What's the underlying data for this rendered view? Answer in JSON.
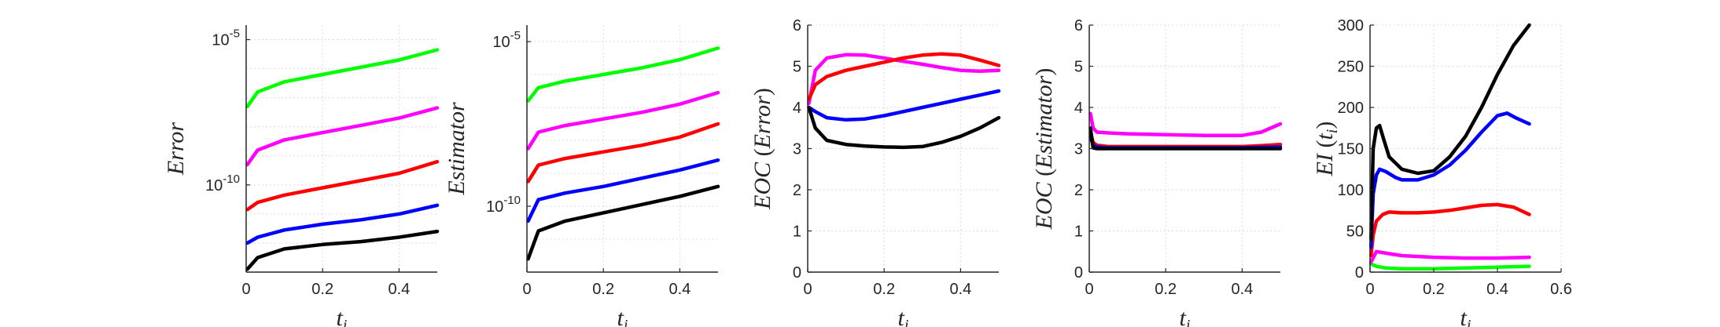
{
  "chart_data": [
    {
      "type": "line",
      "yscale": "log",
      "ylabel": "Error",
      "xlabel": "t_i",
      "xlim": [
        0,
        0.5
      ],
      "ylim_exponent": [
        -13,
        -4.5
      ],
      "x_ticks": [
        "0",
        "0.2",
        "0.4"
      ],
      "y_ticks": [
        "10^{-10}",
        "10^{-5}"
      ],
      "grid": true,
      "series": [
        {
          "color": "#00ff00",
          "x": [
            0.003,
            0.03,
            0.1,
            0.2,
            0.3,
            0.4,
            0.5
          ],
          "log10_y": [
            -7.3,
            -6.8,
            -6.45,
            -6.2,
            -5.95,
            -5.7,
            -5.35
          ]
        },
        {
          "color": "#ff00ff",
          "x": [
            0.003,
            0.03,
            0.1,
            0.2,
            0.3,
            0.4,
            0.5
          ],
          "log10_y": [
            -9.3,
            -8.8,
            -8.45,
            -8.2,
            -7.95,
            -7.7,
            -7.35
          ]
        },
        {
          "color": "#ff0000",
          "x": [
            0.003,
            0.03,
            0.1,
            0.2,
            0.3,
            0.4,
            0.5
          ],
          "log10_y": [
            -10.85,
            -10.6,
            -10.35,
            -10.1,
            -9.85,
            -9.6,
            -9.2
          ]
        },
        {
          "color": "#0000ff",
          "x": [
            0.003,
            0.03,
            0.1,
            0.2,
            0.3,
            0.4,
            0.5
          ],
          "log10_y": [
            -12.0,
            -11.8,
            -11.55,
            -11.35,
            -11.2,
            -11.0,
            -10.7
          ]
        },
        {
          "color": "#000000",
          "x": [
            0.003,
            0.03,
            0.1,
            0.2,
            0.3,
            0.4,
            0.5
          ],
          "log10_y": [
            -12.9,
            -12.5,
            -12.2,
            -12.05,
            -11.95,
            -11.8,
            -11.6
          ]
        }
      ]
    },
    {
      "type": "line",
      "yscale": "log",
      "ylabel": "Estimator",
      "xlabel": "t_i",
      "xlim": [
        0,
        0.5
      ],
      "ylim_exponent": [
        -12,
        -4.5
      ],
      "x_ticks": [
        "0",
        "0.2",
        "0.4"
      ],
      "y_ticks": [
        "10^{-10}",
        "10^{-5}"
      ],
      "grid": true,
      "series": [
        {
          "color": "#00ff00",
          "x": [
            0.003,
            0.03,
            0.1,
            0.2,
            0.3,
            0.4,
            0.5
          ],
          "log10_y": [
            -6.8,
            -6.4,
            -6.2,
            -6.0,
            -5.8,
            -5.55,
            -5.2
          ]
        },
        {
          "color": "#ff00ff",
          "x": [
            0.003,
            0.03,
            0.1,
            0.2,
            0.3,
            0.4,
            0.5
          ],
          "log10_y": [
            -8.25,
            -7.75,
            -7.55,
            -7.35,
            -7.15,
            -6.9,
            -6.55
          ]
        },
        {
          "color": "#ff0000",
          "x": [
            0.003,
            0.03,
            0.1,
            0.2,
            0.3,
            0.4,
            0.5
          ],
          "log10_y": [
            -9.25,
            -8.75,
            -8.55,
            -8.35,
            -8.15,
            -7.9,
            -7.5
          ]
        },
        {
          "color": "#0000ff",
          "x": [
            0.003,
            0.03,
            0.1,
            0.2,
            0.3,
            0.4,
            0.5
          ],
          "log10_y": [
            -10.45,
            -9.8,
            -9.6,
            -9.4,
            -9.15,
            -8.9,
            -8.6
          ]
        },
        {
          "color": "#000000",
          "x": [
            0.003,
            0.03,
            0.1,
            0.2,
            0.3,
            0.4,
            0.5
          ],
          "log10_y": [
            -11.6,
            -10.75,
            -10.45,
            -10.2,
            -9.95,
            -9.7,
            -9.4
          ]
        }
      ]
    },
    {
      "type": "line",
      "ylabel": "EOC (Error)",
      "xlabel": "t_i",
      "xlim": [
        0,
        0.5
      ],
      "ylim": [
        0,
        6
      ],
      "x_ticks": [
        "0",
        "0.2",
        "0.4"
      ],
      "y_ticks": [
        "0",
        "1",
        "2",
        "3",
        "4",
        "5",
        "6"
      ],
      "grid": true,
      "series": [
        {
          "color": "#ff00ff",
          "x": [
            0.003,
            0.02,
            0.05,
            0.1,
            0.15,
            0.2,
            0.25,
            0.3,
            0.35,
            0.4,
            0.45,
            0.5
          ],
          "y": [
            4.1,
            4.9,
            5.2,
            5.28,
            5.27,
            5.2,
            5.12,
            5.05,
            4.97,
            4.9,
            4.88,
            4.9
          ]
        },
        {
          "color": "#ff0000",
          "x": [
            0.003,
            0.02,
            0.05,
            0.1,
            0.15,
            0.2,
            0.25,
            0.3,
            0.35,
            0.4,
            0.45,
            0.5
          ],
          "y": [
            4.2,
            4.55,
            4.75,
            4.9,
            5.0,
            5.1,
            5.2,
            5.27,
            5.3,
            5.27,
            5.15,
            5.02
          ]
        },
        {
          "color": "#0000ff",
          "x": [
            0.003,
            0.02,
            0.05,
            0.1,
            0.15,
            0.2,
            0.25,
            0.3,
            0.35,
            0.4,
            0.45,
            0.5
          ],
          "y": [
            4.0,
            3.9,
            3.75,
            3.7,
            3.72,
            3.8,
            3.9,
            4.0,
            4.1,
            4.2,
            4.3,
            4.4
          ]
        },
        {
          "color": "#000000",
          "x": [
            0.003,
            0.02,
            0.05,
            0.1,
            0.15,
            0.2,
            0.25,
            0.3,
            0.35,
            0.4,
            0.45,
            0.5
          ],
          "y": [
            4.0,
            3.5,
            3.2,
            3.1,
            3.06,
            3.04,
            3.03,
            3.05,
            3.15,
            3.3,
            3.5,
            3.75
          ]
        }
      ]
    },
    {
      "type": "line",
      "ylabel": "EOC (Estimator)",
      "xlabel": "t_i",
      "xlim": [
        0,
        0.5
      ],
      "ylim": [
        0,
        6
      ],
      "x_ticks": [
        "0",
        "0.2",
        "0.4"
      ],
      "y_ticks": [
        "0",
        "1",
        "2",
        "3",
        "4",
        "5",
        "6"
      ],
      "grid": true,
      "series": [
        {
          "color": "#ff00ff",
          "x": [
            0.003,
            0.01,
            0.02,
            0.05,
            0.1,
            0.2,
            0.3,
            0.4,
            0.45,
            0.5
          ],
          "y": [
            3.85,
            3.5,
            3.4,
            3.38,
            3.36,
            3.34,
            3.32,
            3.32,
            3.4,
            3.6
          ]
        },
        {
          "color": "#ff0000",
          "x": [
            0.003,
            0.01,
            0.02,
            0.05,
            0.1,
            0.2,
            0.3,
            0.4,
            0.45,
            0.5
          ],
          "y": [
            3.4,
            3.15,
            3.08,
            3.05,
            3.05,
            3.05,
            3.05,
            3.05,
            3.07,
            3.1
          ]
        },
        {
          "color": "#0000ff",
          "x": [
            0.003,
            0.01,
            0.02,
            0.05,
            0.1,
            0.2,
            0.3,
            0.4,
            0.45,
            0.5
          ],
          "y": [
            3.3,
            3.08,
            3.04,
            3.02,
            3.02,
            3.02,
            3.02,
            3.02,
            3.03,
            3.04
          ]
        },
        {
          "color": "#000000",
          "x": [
            0.003,
            0.01,
            0.02,
            0.05,
            0.1,
            0.2,
            0.3,
            0.4,
            0.45,
            0.5
          ],
          "y": [
            3.5,
            3.02,
            3.0,
            3.0,
            3.0,
            3.0,
            3.0,
            3.0,
            3.0,
            3.0
          ]
        }
      ]
    },
    {
      "type": "line",
      "ylabel": "EI (t_i)",
      "xlabel": "t_i",
      "xlim": [
        0,
        0.6
      ],
      "ylim": [
        0,
        300
      ],
      "x_ticks": [
        "0",
        "0.2",
        "0.4",
        "0.6"
      ],
      "y_ticks": [
        "0",
        "50",
        "100",
        "150",
        "200",
        "250",
        "300"
      ],
      "grid": true,
      "series": [
        {
          "color": "#00ff00",
          "x": [
            0.003,
            0.02,
            0.05,
            0.1,
            0.2,
            0.3,
            0.4,
            0.5
          ],
          "y": [
            10,
            7,
            5,
            4,
            4,
            5,
            6,
            7
          ]
        },
        {
          "color": "#ff00ff",
          "x": [
            0.003,
            0.02,
            0.05,
            0.1,
            0.2,
            0.3,
            0.4,
            0.5
          ],
          "y": [
            12,
            25,
            23,
            20,
            18,
            17,
            17,
            18
          ]
        },
        {
          "color": "#ff0000",
          "x": [
            0.003,
            0.01,
            0.02,
            0.04,
            0.06,
            0.1,
            0.15,
            0.2,
            0.25,
            0.3,
            0.35,
            0.4,
            0.45,
            0.5
          ],
          "y": [
            20,
            45,
            62,
            70,
            73,
            72,
            72,
            73,
            75,
            78,
            81,
            82,
            79,
            70
          ]
        },
        {
          "color": "#0000ff",
          "x": [
            0.003,
            0.01,
            0.02,
            0.03,
            0.05,
            0.08,
            0.1,
            0.15,
            0.2,
            0.25,
            0.3,
            0.35,
            0.4,
            0.43,
            0.46,
            0.5
          ],
          "y": [
            30,
            95,
            118,
            125,
            122,
            115,
            112,
            112,
            118,
            130,
            148,
            170,
            190,
            193,
            187,
            180
          ]
        },
        {
          "color": "#000000",
          "x": [
            0.003,
            0.01,
            0.02,
            0.03,
            0.04,
            0.06,
            0.1,
            0.15,
            0.2,
            0.25,
            0.3,
            0.35,
            0.4,
            0.45,
            0.5
          ],
          "y": [
            40,
            150,
            175,
            178,
            165,
            140,
            125,
            120,
            123,
            140,
            165,
            200,
            240,
            275,
            300
          ]
        }
      ]
    }
  ]
}
